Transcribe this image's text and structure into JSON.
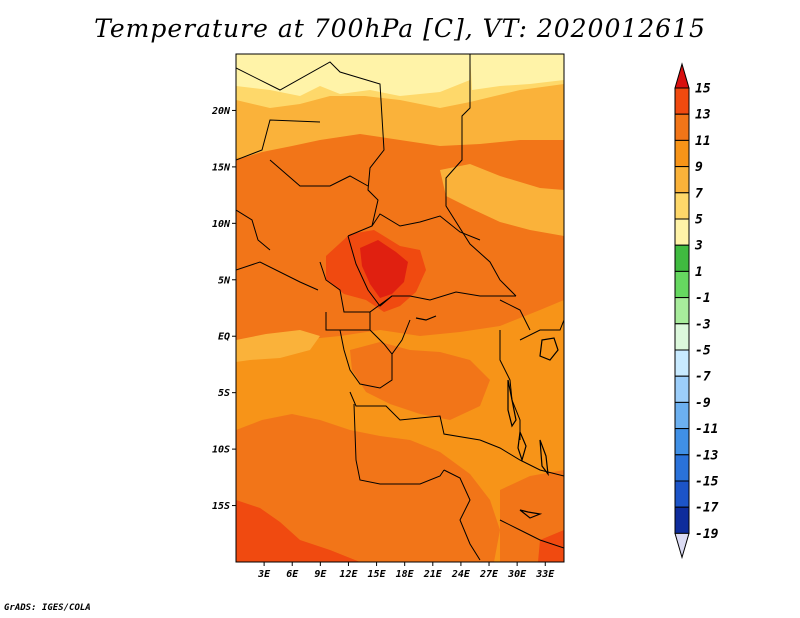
{
  "title": "Temperature at 700hPa [C], VT: 2020012615",
  "credit": "GrADS: IGES/COLA",
  "map": {
    "lon_range": [
      0,
      35
    ],
    "lat_range": [
      -20,
      25
    ],
    "lat_ticks": [
      {
        "value": 20,
        "label": "20N"
      },
      {
        "value": 15,
        "label": "15N"
      },
      {
        "value": 10,
        "label": "10N"
      },
      {
        "value": 5,
        "label": "5N"
      },
      {
        "value": 0,
        "label": "EQ"
      },
      {
        "value": -5,
        "label": "5S"
      },
      {
        "value": -10,
        "label": "10S"
      },
      {
        "value": -15,
        "label": "15S"
      }
    ],
    "lon_ticks": [
      {
        "value": 3,
        "label": "3E"
      },
      {
        "value": 6,
        "label": "6E"
      },
      {
        "value": 9,
        "label": "9E"
      },
      {
        "value": 12,
        "label": "12E"
      },
      {
        "value": 15,
        "label": "15E"
      },
      {
        "value": 18,
        "label": "18E"
      },
      {
        "value": 21,
        "label": "21E"
      },
      {
        "value": 24,
        "label": "24E"
      },
      {
        "value": 27,
        "label": "27E"
      },
      {
        "value": 30,
        "label": "30E"
      },
      {
        "value": 33,
        "label": "33E"
      }
    ]
  },
  "colorbar": {
    "levels": [
      {
        "label": "15",
        "color": "#e02010"
      },
      {
        "label": "13",
        "color": "#f04a10"
      },
      {
        "label": "11",
        "color": "#f27518"
      },
      {
        "label": "9",
        "color": "#f79418"
      },
      {
        "label": "7",
        "color": "#fab23a"
      },
      {
        "label": "5",
        "color": "#fed86a"
      },
      {
        "label": "3",
        "color": "#fff3a8"
      },
      {
        "label": "1",
        "color": "#40bb40"
      },
      {
        "label": "-1",
        "color": "#66d860"
      },
      {
        "label": "-3",
        "color": "#a8ec9c"
      },
      {
        "label": "-5",
        "color": "#dcf8dc"
      },
      {
        "label": "-7",
        "color": "#c8eaff"
      },
      {
        "label": "-9",
        "color": "#9ccefa"
      },
      {
        "label": "-11",
        "color": "#6cb0f0"
      },
      {
        "label": "-13",
        "color": "#4090e6"
      },
      {
        "label": "-15",
        "color": "#2a72da"
      },
      {
        "label": "-17",
        "color": "#1c54c8"
      },
      {
        "label": "-19",
        "color": "#0e2c9c"
      }
    ],
    "top_arrow_color": "#d81010",
    "bottom_arrow_color": "#dcdcf4",
    "bottom_fill_color": "#101070"
  }
}
